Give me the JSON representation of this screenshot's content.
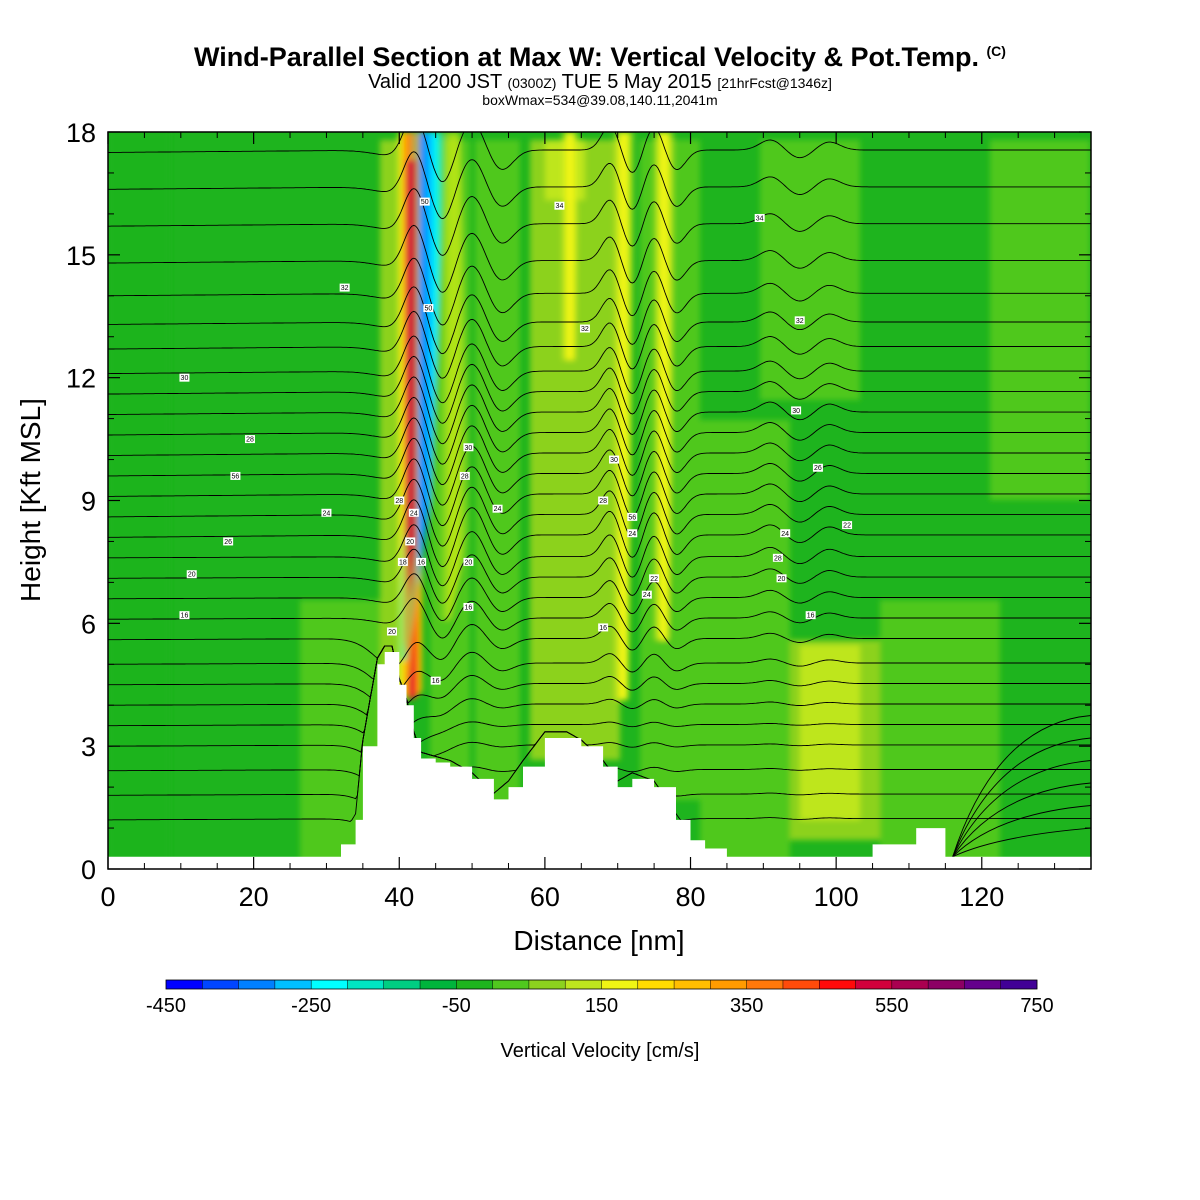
{
  "titles": {
    "main": "Wind-Parallel Section at Max W: Vertical Velocity & Pot.Temp.",
    "copyright": "(C)",
    "valid_prefix": "Valid 1200 JST",
    "valid_utc": "(0300Z)",
    "valid_date": "TUE 5 May 2015",
    "forecast": "[21hrFcst@1346z]",
    "boxwmax": "boxWmax=534@39.08,140.11,2041m"
  },
  "chart_data": {
    "type": "heatmap",
    "xlabel": "Distance [nm]",
    "ylabel": "Height [Kft MSL]",
    "xlim": [
      0,
      135
    ],
    "ylim": [
      0,
      18
    ],
    "xticks": [
      0,
      20,
      40,
      60,
      80,
      100,
      120
    ],
    "yticks": [
      0,
      3,
      6,
      9,
      12,
      15,
      18
    ],
    "colorbar": {
      "label": "Vertical Velocity [cm/s]",
      "range": [
        -450,
        750
      ],
      "step": 50,
      "tick_values": [
        -450,
        -250,
        -50,
        150,
        350,
        550,
        750
      ],
      "colors": [
        "#0000ff",
        "#0045ff",
        "#0080ff",
        "#00bfff",
        "#00ffff",
        "#00e6c3",
        "#00cd82",
        "#00b43c",
        "#1eb41e",
        "#50c81e",
        "#8cd21e",
        "#bee61e",
        "#f0f514",
        "#ffdc00",
        "#ffbe00",
        "#ff9b00",
        "#ff780a",
        "#ff4b0a",
        "#ff0a0a",
        "#d2003c",
        "#aa0050",
        "#8c0064",
        "#64008c",
        "#410096"
      ]
    },
    "updraft_bands": [
      {
        "x": 41.7,
        "w_cm_s": 534
      },
      {
        "x": 42.8,
        "w_cm_s": -250
      },
      {
        "x": 48,
        "w_cm_s": 100
      },
      {
        "x": 72,
        "w_cm_s": 150
      },
      {
        "x": 76,
        "w_cm_s": 150
      },
      {
        "x": 63,
        "w_cm_s": 60
      },
      {
        "x": 100,
        "w_cm_s": 60
      }
    ],
    "terrain": {
      "x": [
        0,
        30,
        32,
        34,
        35,
        37,
        38,
        39,
        40,
        41,
        42,
        43,
        45,
        47,
        50,
        53,
        55,
        57,
        60,
        63,
        65,
        68,
        70,
        72,
        75,
        78,
        80,
        82,
        85,
        90,
        100,
        104,
        105,
        110,
        111,
        114,
        115,
        120,
        135
      ],
      "kft": [
        0.3,
        0.3,
        0.6,
        1.2,
        3.0,
        5.0,
        5.3,
        5.3,
        4.5,
        4.0,
        3.2,
        2.7,
        2.6,
        2.5,
        2.2,
        1.7,
        2.0,
        2.5,
        3.2,
        3.2,
        3.0,
        2.5,
        2.0,
        2.2,
        2.0,
        1.2,
        0.7,
        0.5,
        0.3,
        0.3,
        0.3,
        0.3,
        0.6,
        0.6,
        1.0,
        1.0,
        0.3,
        0.3,
        0.3
      ]
    },
    "isentropes_kft": [
      1.2,
      1.8,
      2.4,
      3.0,
      3.5,
      4.0,
      4.5,
      5.0,
      5.6,
      6.1,
      6.6,
      7.1,
      7.6,
      8.1,
      8.6,
      9.1,
      9.6,
      10.1,
      10.6,
      11.1,
      11.6,
      12.1,
      12.7,
      13.3,
      14.0,
      14.8,
      15.7,
      16.6,
      17.5
    ],
    "isentrope_labels": [
      {
        "x": 10.5,
        "y": 6.2,
        "text": "16"
      },
      {
        "x": 11.5,
        "y": 7.2,
        "text": "20"
      },
      {
        "x": 16.5,
        "y": 8.0,
        "text": "26"
      },
      {
        "x": 30.0,
        "y": 8.7,
        "text": "24"
      },
      {
        "x": 17.5,
        "y": 9.6,
        "text": "56"
      },
      {
        "x": 19.5,
        "y": 10.5,
        "text": "28"
      },
      {
        "x": 10.5,
        "y": 12.0,
        "text": "30"
      },
      {
        "x": 32.5,
        "y": 14.2,
        "text": "32"
      },
      {
        "x": 62.0,
        "y": 16.2,
        "text": "34"
      },
      {
        "x": 89.5,
        "y": 15.9,
        "text": "34"
      },
      {
        "x": 95.0,
        "y": 13.4,
        "text": "32"
      },
      {
        "x": 94.5,
        "y": 11.2,
        "text": "30"
      },
      {
        "x": 97.5,
        "y": 9.8,
        "text": "26"
      },
      {
        "x": 101.5,
        "y": 8.4,
        "text": "22"
      },
      {
        "x": 93.0,
        "y": 8.2,
        "text": "24"
      },
      {
        "x": 92.0,
        "y": 7.6,
        "text": "28"
      },
      {
        "x": 92.5,
        "y": 7.1,
        "text": "20"
      },
      {
        "x": 96.5,
        "y": 6.2,
        "text": "16"
      },
      {
        "x": 69.5,
        "y": 10.0,
        "text": "30"
      },
      {
        "x": 65.5,
        "y": 13.2,
        "text": "32"
      },
      {
        "x": 68.0,
        "y": 9.0,
        "text": "28"
      },
      {
        "x": 72.0,
        "y": 8.6,
        "text": "56"
      },
      {
        "x": 72.0,
        "y": 8.2,
        "text": "24"
      },
      {
        "x": 74.0,
        "y": 6.7,
        "text": "24"
      },
      {
        "x": 75.0,
        "y": 7.1,
        "text": "22"
      },
      {
        "x": 68.0,
        "y": 5.9,
        "text": "16"
      },
      {
        "x": 49.5,
        "y": 10.3,
        "text": "30"
      },
      {
        "x": 49.0,
        "y": 9.6,
        "text": "28"
      },
      {
        "x": 53.5,
        "y": 8.8,
        "text": "24"
      },
      {
        "x": 49.5,
        "y": 7.5,
        "text": "20"
      },
      {
        "x": 49.5,
        "y": 6.4,
        "text": "16"
      },
      {
        "x": 45.0,
        "y": 4.6,
        "text": "16"
      },
      {
        "x": 40.0,
        "y": 9.0,
        "text": "28"
      },
      {
        "x": 42.0,
        "y": 8.7,
        "text": "24"
      },
      {
        "x": 41.5,
        "y": 8.0,
        "text": "20"
      },
      {
        "x": 40.5,
        "y": 7.5,
        "text": "18"
      },
      {
        "x": 43.0,
        "y": 7.5,
        "text": "16"
      },
      {
        "x": 39.0,
        "y": 5.8,
        "text": "20"
      },
      {
        "x": 43.5,
        "y": 16.3,
        "text": "50"
      },
      {
        "x": 44.0,
        "y": 13.7,
        "text": "50"
      }
    ]
  }
}
